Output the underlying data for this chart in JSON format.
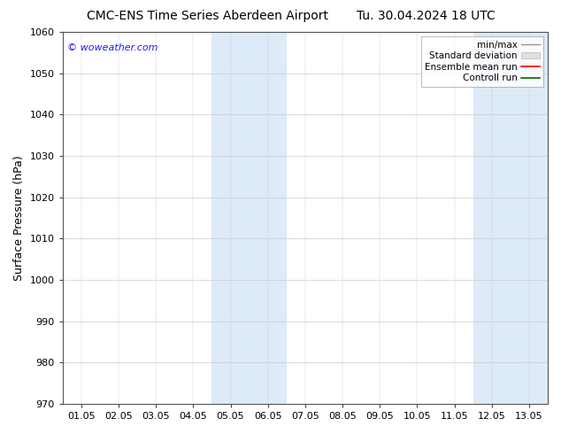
{
  "title_left": "CMC-ENS Time Series Aberdeen Airport",
  "title_right": "Tu. 30.04.2024 18 UTC",
  "ylabel": "Surface Pressure (hPa)",
  "ylim": [
    970,
    1060
  ],
  "yticks": [
    970,
    980,
    990,
    1000,
    1010,
    1020,
    1030,
    1040,
    1050,
    1060
  ],
  "xlim_start": -0.5,
  "xlim_end": 12.5,
  "xtick_labels": [
    "01.05",
    "02.05",
    "03.05",
    "04.05",
    "05.05",
    "06.05",
    "07.05",
    "08.05",
    "09.05",
    "10.05",
    "11.05",
    "12.05",
    "13.05"
  ],
  "xtick_positions": [
    0,
    1,
    2,
    3,
    4,
    5,
    6,
    7,
    8,
    9,
    10,
    11,
    12
  ],
  "shaded_regions": [
    {
      "x_start": 3.5,
      "x_end": 5.5,
      "color": "#ddeaf7"
    },
    {
      "x_start": 10.5,
      "x_end": 12.5,
      "color": "#ddeaf7"
    }
  ],
  "watermark_text": "© woweather.com",
  "watermark_color": "#1a1aff",
  "legend_labels": [
    "min/max",
    "Standard deviation",
    "Ensemble mean run",
    "Controll run"
  ],
  "legend_line_colors": [
    "#999999",
    "#cccccc",
    "#ff0000",
    "#006600"
  ],
  "background_color": "#ffffff",
  "plot_bg_color": "#ffffff",
  "grid_color": "#cccccc",
  "title_fontsize": 10,
  "axis_label_fontsize": 9,
  "tick_fontsize": 8,
  "legend_fontsize": 7.5,
  "watermark_fontsize": 8
}
